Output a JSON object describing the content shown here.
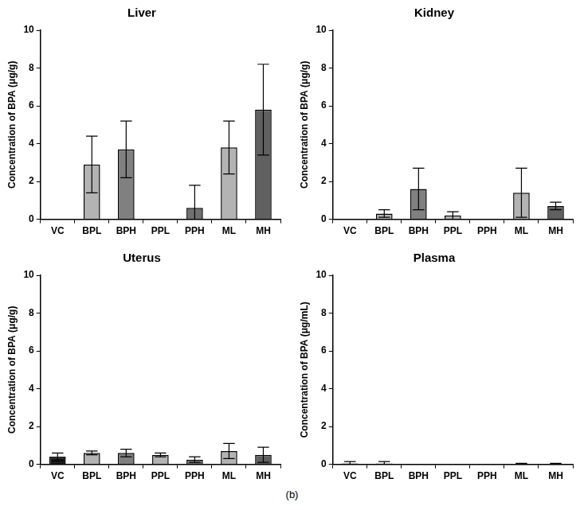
{
  "caption": "(b)",
  "chart_data": [
    {
      "type": "bar",
      "title": "Liver",
      "y_label": "Concentration of BPA (μg/g)",
      "categories": [
        "VC",
        "BPL",
        "BPH",
        "PPL",
        "PPH",
        "ML",
        "MH"
      ],
      "values": [
        0,
        2.9,
        3.7,
        0,
        0.6,
        3.8,
        5.8
      ],
      "errors": [
        0,
        1.5,
        1.5,
        0,
        1.2,
        1.4,
        2.4
      ],
      "colors": [
        "#1a1a1a",
        "#b3b3b3",
        "#808080",
        "#b3b3b3",
        "#707070",
        "#b3b3b3",
        "#606060"
      ],
      "ylim": [
        0,
        10
      ],
      "yticks": [
        0,
        2,
        4,
        6,
        8,
        10
      ],
      "grid": false
    },
    {
      "type": "bar",
      "title": "Kidney",
      "y_label": "Concentration of BPA (μg/g)",
      "categories": [
        "VC",
        "BPL",
        "BPH",
        "PPL",
        "PPH",
        "ML",
        "MH"
      ],
      "values": [
        0,
        0.3,
        1.6,
        0.2,
        0,
        1.4,
        0.7
      ],
      "errors": [
        0,
        0.2,
        1.1,
        0.2,
        0,
        1.3,
        0.2
      ],
      "colors": [
        "#1a1a1a",
        "#b3b3b3",
        "#808080",
        "#b3b3b3",
        "#707070",
        "#b3b3b3",
        "#606060"
      ],
      "ylim": [
        0,
        10
      ],
      "yticks": [
        0,
        2,
        4,
        6,
        8,
        10
      ],
      "grid": false
    },
    {
      "type": "bar",
      "title": "Uterus",
      "y_label": "Concentration of BPA (μg/g)",
      "categories": [
        "VC",
        "BPL",
        "BPH",
        "PPL",
        "PPH",
        "ML",
        "MH"
      ],
      "values": [
        0.4,
        0.6,
        0.6,
        0.5,
        0.25,
        0.7,
        0.5
      ],
      "errors": [
        0.2,
        0.1,
        0.2,
        0.1,
        0.15,
        0.4,
        0.4
      ],
      "colors": [
        "#1a1a1a",
        "#b3b3b3",
        "#808080",
        "#b3b3b3",
        "#707070",
        "#b3b3b3",
        "#606060"
      ],
      "ylim": [
        0,
        10
      ],
      "yticks": [
        0,
        2,
        4,
        6,
        8,
        10
      ],
      "grid": false
    },
    {
      "type": "bar",
      "title": "Plasma",
      "y_label": "Concentration of BPA (μg/mL)",
      "categories": [
        "VC",
        "BPL",
        "BPH",
        "PPL",
        "PPH",
        "ML",
        "MH"
      ],
      "values": [
        0.05,
        0.05,
        0,
        0,
        0,
        0.02,
        0.02
      ],
      "errors": [
        0.1,
        0.1,
        0,
        0,
        0,
        0.03,
        0.03
      ],
      "colors": [
        "#1a1a1a",
        "#b3b3b3",
        "#808080",
        "#b3b3b3",
        "#707070",
        "#b3b3b3",
        "#606060"
      ],
      "ylim": [
        0,
        10
      ],
      "yticks": [
        0,
        2,
        4,
        6,
        8,
        10
      ],
      "grid": false
    }
  ]
}
